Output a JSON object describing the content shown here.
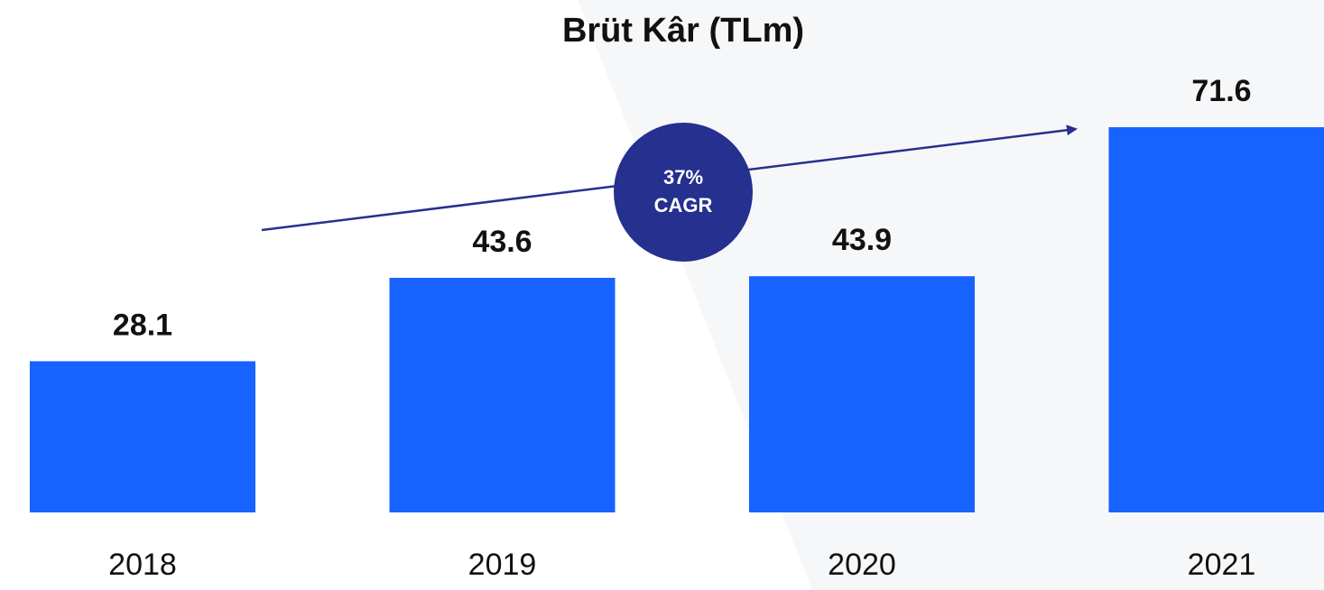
{
  "chart_data": {
    "type": "bar",
    "title": "Brüt Kâr (TLm)",
    "categories": [
      "2018",
      "2019",
      "2020",
      "2021"
    ],
    "values": [
      28.1,
      43.6,
      43.9,
      71.6
    ],
    "color": "#1862ff",
    "annotation": [
      "37%",
      "CAGR"
    ]
  }
}
